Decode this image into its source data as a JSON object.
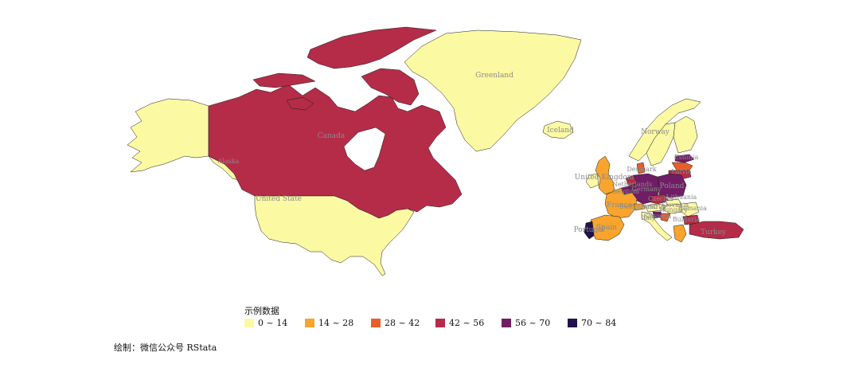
{
  "legend": {
    "title": "示例数据",
    "items": [
      {
        "label": "0 ~ 14",
        "color": "#FCF9A3"
      },
      {
        "label": "14 ~ 28",
        "color": "#F8A42D"
      },
      {
        "label": "28 ~ 42",
        "color": "#E85E2B"
      },
      {
        "label": "42 ~ 56",
        "color": "#B52C48"
      },
      {
        "label": "56 ~ 70",
        "color": "#711D66"
      },
      {
        "label": "70 ~ 84",
        "color": "#23114A"
      }
    ]
  },
  "caption": "绘制：微信公众号 RStata",
  "countries": [
    {
      "name": "Canada",
      "label": "Canada",
      "bin": 3
    },
    {
      "name": "United States",
      "label": "United State",
      "bin": 0
    },
    {
      "name": "Alaska",
      "label": "Alaska",
      "bin": 0
    },
    {
      "name": "Greenland",
      "label": "Greenland",
      "bin": 0
    },
    {
      "name": "Iceland",
      "label": "Iceland",
      "bin": 0
    },
    {
      "name": "Norway",
      "label": "Norway",
      "bin": 0
    },
    {
      "name": "Sweden",
      "label": "",
      "bin": 0
    },
    {
      "name": "Finland",
      "label": "",
      "bin": 0
    },
    {
      "name": "United Kingdom",
      "label": "United Kingdom",
      "bin": 1
    },
    {
      "name": "Ireland",
      "label": "",
      "bin": 0
    },
    {
      "name": "Denmark",
      "label": "Denmark",
      "bin": 2
    },
    {
      "name": "Netherlands",
      "label": "Netherlands",
      "bin": 3
    },
    {
      "name": "Belgium",
      "label": "Belgium",
      "bin": 4
    },
    {
      "name": "Germany",
      "label": "Germany",
      "bin": 4
    },
    {
      "name": "Poland",
      "label": "Poland",
      "bin": 4
    },
    {
      "name": "Estonia",
      "label": "Estonia",
      "bin": 4
    },
    {
      "name": "Latvia",
      "label": "Latvia",
      "bin": 2
    },
    {
      "name": "Lithuania",
      "label": "Lithuania",
      "bin": 3
    },
    {
      "name": "France",
      "label": "France",
      "bin": 1
    },
    {
      "name": "Spain",
      "label": "Spain",
      "bin": 1
    },
    {
      "name": "Portugal",
      "label": "Portugal",
      "bin": 5
    },
    {
      "name": "Switzerland",
      "label": "Switzerland",
      "bin": 1
    },
    {
      "name": "Austria",
      "label": "Austria",
      "bin": 0
    },
    {
      "name": "Czechia",
      "label": "Czechia",
      "bin": 3
    },
    {
      "name": "Slovakia",
      "label": "Slovakia",
      "bin": 0
    },
    {
      "name": "Hungary",
      "label": "Hungary",
      "bin": 0
    },
    {
      "name": "Slovenia",
      "label": "Slovenia",
      "bin": 4
    },
    {
      "name": "Croatia",
      "label": "",
      "bin": 2
    },
    {
      "name": "Romania",
      "label": "Romania",
      "bin": 0
    },
    {
      "name": "Bulgaria",
      "label": "Bulgaria",
      "bin": 3
    },
    {
      "name": "Italy",
      "label": "Italy",
      "bin": 0
    },
    {
      "name": "Greece",
      "label": "",
      "bin": 1
    },
    {
      "name": "Turkey",
      "label": "Turkey",
      "bin": 3
    }
  ]
}
